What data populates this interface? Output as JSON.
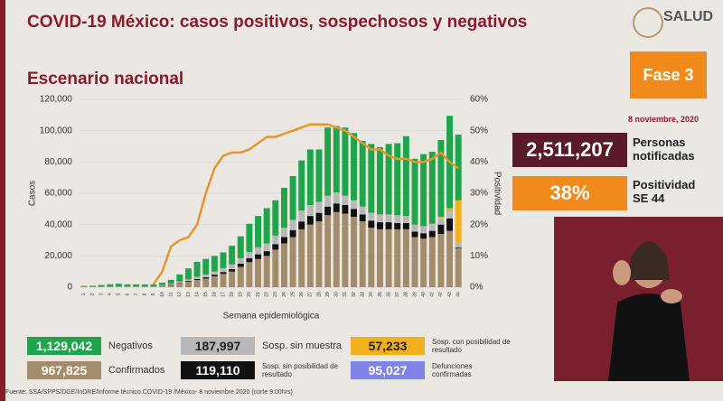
{
  "header": {
    "title": "COVID-19 México: casos positivos, sospechosos y negativos",
    "logo": "SALUD",
    "subtitle": "Escenario nacional"
  },
  "side": {
    "phase": "Fase 3",
    "date": "8 noviembre, 2020",
    "notified": "2,511,207",
    "notified_label": "Personas notificadas",
    "positivity": "38%",
    "positivity_label": "Positividad SE 44"
  },
  "chart_data": {
    "type": "bar",
    "stacked": true,
    "xlabel": "Semana epidemiológica",
    "ylabel": "Casos",
    "y2label": "Positividad",
    "categories": [
      1,
      2,
      3,
      4,
      5,
      6,
      7,
      8,
      9,
      10,
      11,
      12,
      13,
      14,
      15,
      16,
      17,
      18,
      19,
      20,
      21,
      22,
      23,
      24,
      25,
      26,
      27,
      28,
      29,
      30,
      31,
      32,
      33,
      34,
      35,
      36,
      37,
      38,
      39,
      40,
      41,
      42,
      43,
      44
    ],
    "ylim": [
      0,
      120000
    ],
    "yticks": [
      0,
      {
        "value": 20000,
        "label": "20,000"
      },
      {
        "value": 40000,
        "label": "40,000"
      },
      {
        "value": 60000,
        "label": "60,000"
      },
      {
        "value": 80000,
        "label": "80,000"
      },
      {
        "value": 100000,
        "label": "100,000"
      },
      {
        "value": 120000,
        "label": "120,000"
      }
    ],
    "y2lim": [
      0,
      60
    ],
    "y2ticks": [
      {
        "value": 0,
        "label": "0%"
      },
      {
        "value": 10,
        "label": "10%"
      },
      {
        "value": 20,
        "label": "20%"
      },
      {
        "value": 30,
        "label": "30%"
      },
      {
        "value": 40,
        "label": "40%"
      },
      {
        "value": 50,
        "label": "50%"
      },
      {
        "value": 60,
        "label": "60%"
      }
    ],
    "series": [
      {
        "name": "Confirmados",
        "total": "967,825",
        "color": "#a38c6c",
        "values": [
          200,
          200,
          300,
          300,
          400,
          400,
          400,
          400,
          500,
          1000,
          1500,
          2500,
          3500,
          4500,
          5500,
          7000,
          8500,
          10000,
          13000,
          16000,
          18000,
          20000,
          24000,
          28000,
          32000,
          37000,
          40000,
          42000,
          46000,
          48000,
          47000,
          45000,
          42000,
          38000,
          37000,
          37000,
          37000,
          37000,
          32000,
          31000,
          32000,
          34000,
          36000,
          25000
        ]
      },
      {
        "name": "Sosp. sin posibilidad de resultado",
        "total": "119,110",
        "color": "#111111",
        "values": [
          0,
          0,
          0,
          0,
          0,
          0,
          0,
          0,
          0,
          100,
          200,
          300,
          500,
          700,
          800,
          1000,
          1200,
          1500,
          2000,
          2500,
          3000,
          3000,
          3500,
          4000,
          4500,
          5000,
          5500,
          5500,
          5500,
          5500,
          5500,
          5000,
          4500,
          4500,
          4500,
          4500,
          4000,
          4000,
          3500,
          3500,
          4000,
          6000,
          8000,
          500
        ]
      },
      {
        "name": "Sosp. sin muestra",
        "total": "187,997",
        "color": "#b8b8b8",
        "values": [
          100,
          100,
          100,
          100,
          100,
          100,
          100,
          100,
          100,
          300,
          500,
          800,
          1000,
          1500,
          1800,
          2000,
          2500,
          3000,
          3500,
          4000,
          4500,
          5000,
          5500,
          6000,
          6500,
          7000,
          7000,
          7000,
          7000,
          7000,
          6000,
          5500,
          5000,
          5000,
          5000,
          5000,
          5000,
          4500,
          4500,
          4500,
          4500,
          4500,
          4500,
          3000
        ]
      },
      {
        "name": "Sosp. con posibilidad de resultado",
        "total": "57,233",
        "color": "#f2b01e",
        "values": [
          0,
          0,
          0,
          0,
          0,
          0,
          0,
          0,
          0,
          0,
          0,
          0,
          0,
          0,
          0,
          0,
          0,
          0,
          0,
          0,
          0,
          0,
          0,
          0,
          0,
          0,
          0,
          0,
          0,
          0,
          0,
          0,
          0,
          0,
          0,
          0,
          0,
          0,
          0,
          0,
          0,
          500,
          2000,
          27000
        ]
      },
      {
        "name": "Negativos",
        "total": "1,129,042",
        "color": "#20a54a",
        "values": [
          500,
          600,
          1000,
          1500,
          1700,
          1300,
          1300,
          1300,
          1200,
          1500,
          2500,
          4500,
          7000,
          9500,
          10000,
          10000,
          10000,
          12000,
          14000,
          18000,
          20000,
          22500,
          22500,
          25500,
          28000,
          32000,
          35500,
          33500,
          43500,
          42500,
          43500,
          43000,
          42000,
          44000,
          43000,
          45000,
          46000,
          51000,
          42000,
          46000,
          46000,
          49000,
          59000,
          42000
        ]
      }
    ],
    "line": {
      "axis": "y2",
      "color": "#e8962c",
      "values": [
        null,
        null,
        null,
        null,
        null,
        null,
        null,
        null,
        1,
        5,
        13,
        15,
        16,
        20,
        30,
        38,
        42,
        43,
        43,
        44,
        46,
        48,
        48,
        49,
        50,
        51,
        52,
        52,
        52,
        51,
        50,
        48,
        46,
        44,
        44,
        42,
        41,
        41,
        40,
        40,
        41,
        43,
        40,
        38
      ]
    },
    "extra_legend": {
      "name": "Defunciones confirmadas",
      "total": "95,027",
      "color": "#7f82e6"
    }
  },
  "footer": "Fuente: SSA/SPPS/DGE/InDRE/Informe técnico.COVID-19 /México- 8 noviembre 2020 (corte 9:00hrs)"
}
